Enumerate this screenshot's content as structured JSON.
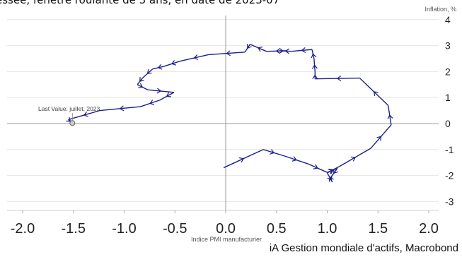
{
  "header": {
    "cut_title": "essée, fenêtre roulante de 3 ans, en date de 2023-07"
  },
  "footer": {
    "source": "iA Gestion mondiale d'actifs, Macrobond"
  },
  "chart_data": {
    "type": "line",
    "title": "",
    "xlabel": "Indice PMI manufacturier",
    "ylabel": "Inflation, %",
    "xlim": [
      -2.2,
      2.25
    ],
    "ylim": [
      -3.3,
      4.2
    ],
    "x_ticks": [
      "-2.0",
      "-1.5",
      "-1.0",
      "-0.5",
      "0.0",
      "0.5",
      "1.0",
      "1.5",
      "2.0"
    ],
    "y_ticks": [
      "-3",
      "-2",
      "-1",
      "0",
      "1",
      "2",
      "3",
      "4"
    ],
    "grid": "horizontal",
    "line_color": "#1b1f8a",
    "zero_line_color": "#999999",
    "annotation": "Last Value: juillet, 2023",
    "series": [
      {
        "x": [
          -0.02,
          0.37,
          0.58,
          0.81,
          1.0,
          1.1,
          1.03,
          1.05,
          1.0,
          1.12,
          1.43,
          1.63,
          1.6,
          1.32,
          0.88,
          0.88,
          0.87,
          0.85,
          0.65,
          0.53,
          0.6,
          0.4,
          0.24,
          0.19,
          -0.17,
          -0.45,
          -0.61,
          -0.72,
          -0.82,
          -0.87,
          -0.77,
          -0.51,
          -0.65,
          -0.84,
          -1.24,
          -1.55,
          -1.51
        ],
        "y": [
          -1.7,
          -1.0,
          -1.25,
          -1.55,
          -1.88,
          -1.72,
          -2.1,
          -2.25,
          -1.9,
          -1.65,
          -0.95,
          -0.05,
          0.7,
          1.75,
          1.72,
          2.0,
          2.5,
          2.85,
          2.78,
          2.8,
          2.8,
          2.78,
          3.05,
          2.75,
          2.65,
          2.4,
          2.2,
          2.1,
          1.75,
          1.5,
          1.3,
          1.2,
          0.9,
          0.65,
          0.5,
          0.15,
          0.02
        ]
      }
    ]
  }
}
